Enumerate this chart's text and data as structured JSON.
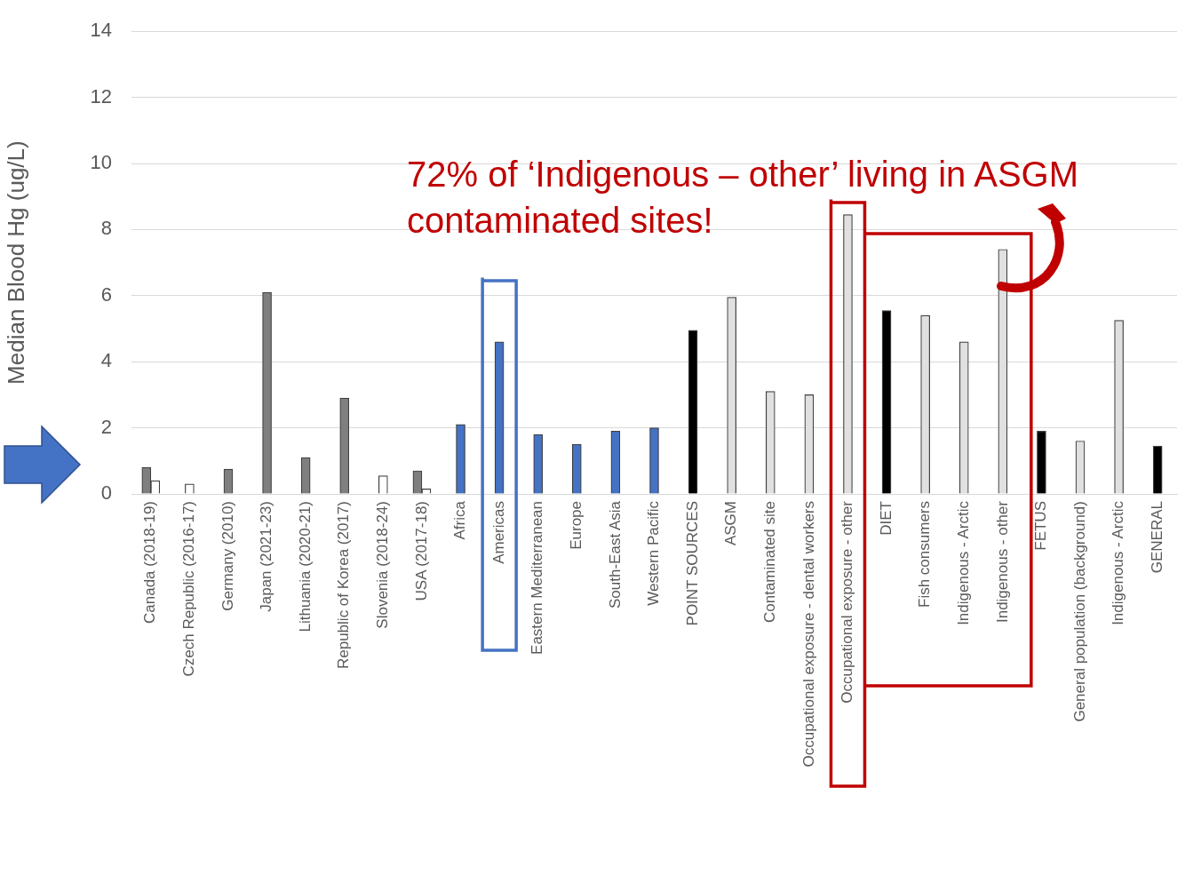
{
  "chart_data": {
    "type": "bar",
    "ylabel": "Median Blood Hg (ug/L)",
    "categories": [
      "Canada (2018-19)",
      "Czech Republic (2016-17)",
      "Germany (2010)",
      "Japan (2021-23)",
      "Lithuania (2020-21)",
      "Republic of Korea (2017)",
      "Slovenia (2018-24)",
      "USA (2017-18)",
      "Africa",
      "Americas",
      "Eastern Mediterranean",
      "Europe",
      "South-East Asia",
      "Western Pacific",
      "POINT SOURCES",
      "ASGM",
      "Contaminated site",
      "Occupational exposure - dental workers",
      "Occupational exposure - other",
      "DIET",
      "Fish consumers",
      "Indigenous - Arctic",
      "Indigenous - other",
      "FETUS",
      "General population (background)",
      "Indigenous - Arctic",
      "GENERAL"
    ],
    "series": [
      {
        "colors": [
          "#7f7f7f",
          "#7f7f7f",
          "#7f7f7f",
          "#7f7f7f",
          "#7f7f7f",
          "#7f7f7f",
          "#7f7f7f",
          "#7f7f7f",
          "#4472c4",
          "#4472c4",
          "#4472c4",
          "#4472c4",
          "#4472c4",
          "#4472c4",
          "#000000",
          "#e0e0e0",
          "#e0e0e0",
          "#e0e0e0",
          "#e0e0e0",
          "#000000",
          "#e0e0e0",
          "#e0e0e0",
          "#e0e0e0",
          "#000000",
          "#e0e0e0",
          "#e0e0e0",
          "#000000"
        ],
        "values": [
          0.8,
          null,
          0.75,
          6.1,
          1.1,
          2.9,
          null,
          0.7,
          2.1,
          4.6,
          1.8,
          1.5,
          1.9,
          2.0,
          4.95,
          5.95,
          3.1,
          3.0,
          8.45,
          5.55,
          5.4,
          4.6,
          7.4,
          1.9,
          1.6,
          5.25,
          1.45
        ]
      },
      {
        "color": "#ffffff",
        "values": [
          0.4,
          0.3,
          null,
          null,
          null,
          null,
          0.55,
          0.15,
          null,
          null,
          null,
          null,
          null,
          null,
          null,
          null,
          null,
          null,
          null,
          null,
          null,
          null,
          null,
          null,
          null,
          null,
          null
        ]
      }
    ],
    "ylim": [
      0,
      14
    ],
    "yticks": [
      0,
      2,
      4,
      6,
      8,
      10,
      12,
      14
    ],
    "grid": "y",
    "annotations": [
      "72% of ‘Indigenous – other’ living in ASGM contaminated sites!"
    ]
  }
}
